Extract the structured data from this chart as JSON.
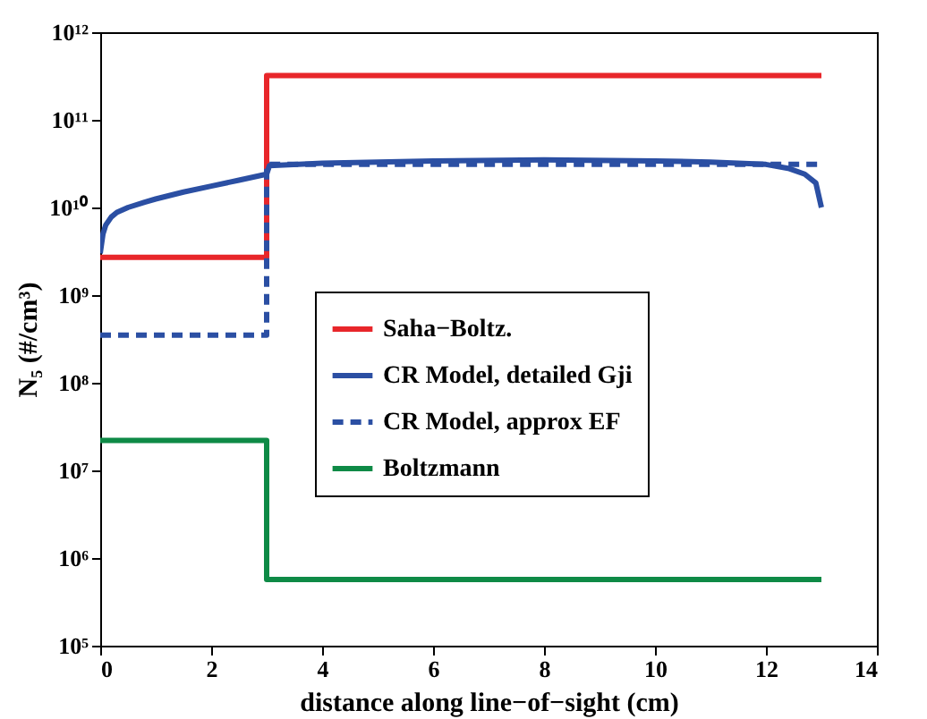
{
  "chart_data": {
    "type": "line",
    "xlabel": "distance along line−of−sight (cm)",
    "ylabel": "N₅ (#/cm³)",
    "log": "y",
    "xlim": [
      0,
      14
    ],
    "xticks": [
      0,
      2,
      4,
      6,
      8,
      10,
      12,
      14
    ],
    "ylim": [
      100000,
      1000000000000
    ],
    "yticks": [
      {
        "value": 100000,
        "label": "10⁵"
      },
      {
        "value": 1000000,
        "label": "10⁶"
      },
      {
        "value": 10000000,
        "label": "10⁷"
      },
      {
        "value": 100000000,
        "label": "10⁸"
      },
      {
        "value": 1000000000,
        "label": "10⁹"
      },
      {
        "value": 10000000000,
        "label": "10¹⁰"
      },
      {
        "value": 100000000000,
        "label": "10¹¹"
      },
      {
        "value": 1000000000000,
        "label": "10¹²"
      }
    ],
    "grid": false,
    "legend": "center",
    "series": [
      {
        "name": "Saha−Boltz.",
        "color": "#e8262a",
        "line_style": "solid",
        "x": [
          0,
          3,
          3,
          13
        ],
        "values": [
          2700000000,
          2700000000,
          320000000000,
          320000000000
        ]
      },
      {
        "name": "CR Model, detailed Gji",
        "color": "#2b4fa3",
        "line_style": "solid",
        "x": [
          0,
          0.05,
          0.1,
          0.2,
          0.3,
          0.5,
          0.8,
          1,
          1.5,
          2,
          2.5,
          3,
          3.05,
          4,
          6,
          8,
          10,
          11,
          12,
          12.4,
          12.7,
          12.9,
          13
        ],
        "values": [
          3000000000,
          5000000000,
          6300000000,
          7800000000,
          8800000000,
          10000000000,
          11500000000,
          12500000000,
          15000000000,
          17500000000,
          20500000000,
          24000000000,
          30000000000,
          32000000000,
          34000000000,
          35000000000,
          34000000000,
          33000000000,
          31000000000,
          28000000000,
          24000000000,
          19000000000,
          10000000000
        ]
      },
      {
        "name": "CR Model, approx EF",
        "color": "#2b4fa3",
        "line_style": "dashed",
        "x": [
          0,
          3,
          3,
          13
        ],
        "values": [
          350000000,
          350000000,
          31000000000,
          31000000000
        ]
      },
      {
        "name": "Boltzmann",
        "color": "#0e8a46",
        "line_style": "solid",
        "x": [
          0,
          3,
          3,
          13
        ],
        "values": [
          22000000,
          22000000,
          570000,
          570000
        ]
      }
    ]
  }
}
